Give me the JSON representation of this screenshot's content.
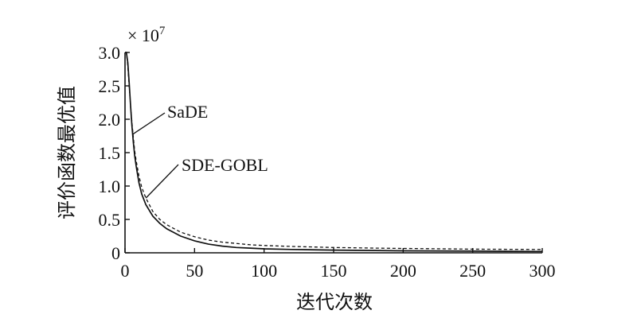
{
  "chart_data": {
    "type": "line",
    "title": "",
    "xlabel": "迭代次数",
    "ylabel": "评价函数最优值",
    "y_multiplier": "× 10",
    "y_multiplier_exp": "7",
    "xlim": [
      0,
      300
    ],
    "ylim": [
      0,
      3.0
    ],
    "xticks": [
      0,
      50,
      100,
      150,
      200,
      250,
      300
    ],
    "xtick_labels": [
      "0",
      "50",
      "100",
      "150",
      "200",
      "250",
      "300"
    ],
    "yticks": [
      0,
      0.5,
      1.0,
      1.5,
      2.0,
      2.5,
      3.0
    ],
    "ytick_labels": [
      "0",
      "0.5",
      "1.0",
      "1.5",
      "2.0",
      "2.5",
      "3.0"
    ],
    "grid": false,
    "series": [
      {
        "name": "SaDE",
        "style": "solid",
        "x": [
          0,
          1,
          2,
          3,
          4,
          5,
          6,
          7,
          8,
          10,
          12,
          15,
          20,
          25,
          30,
          40,
          50,
          60,
          70,
          80,
          90,
          100,
          120,
          150,
          180,
          200,
          250,
          300
        ],
        "y": [
          3.0,
          3.0,
          2.85,
          2.55,
          2.2,
          1.9,
          1.65,
          1.45,
          1.3,
          1.05,
          0.88,
          0.72,
          0.55,
          0.44,
          0.36,
          0.25,
          0.18,
          0.13,
          0.1,
          0.08,
          0.07,
          0.06,
          0.05,
          0.04,
          0.035,
          0.03,
          0.025,
          0.02
        ]
      },
      {
        "name": "SDE-GOBL",
        "style": "dashed",
        "x": [
          0,
          1,
          2,
          3,
          4,
          5,
          6,
          7,
          8,
          10,
          12,
          15,
          20,
          25,
          30,
          40,
          50,
          60,
          70,
          80,
          90,
          100,
          120,
          150,
          180,
          200,
          250,
          300
        ],
        "y": [
          3.0,
          3.0,
          2.8,
          2.5,
          2.2,
          1.95,
          1.72,
          1.52,
          1.38,
          1.15,
          0.98,
          0.82,
          0.62,
          0.5,
          0.42,
          0.31,
          0.24,
          0.19,
          0.16,
          0.14,
          0.12,
          0.11,
          0.095,
          0.08,
          0.07,
          0.065,
          0.055,
          0.05
        ]
      }
    ],
    "annotations": [
      {
        "text": "SaDE",
        "series": "SaDE"
      },
      {
        "text": "SDE-GOBL",
        "series": "SDE-GOBL"
      }
    ]
  }
}
